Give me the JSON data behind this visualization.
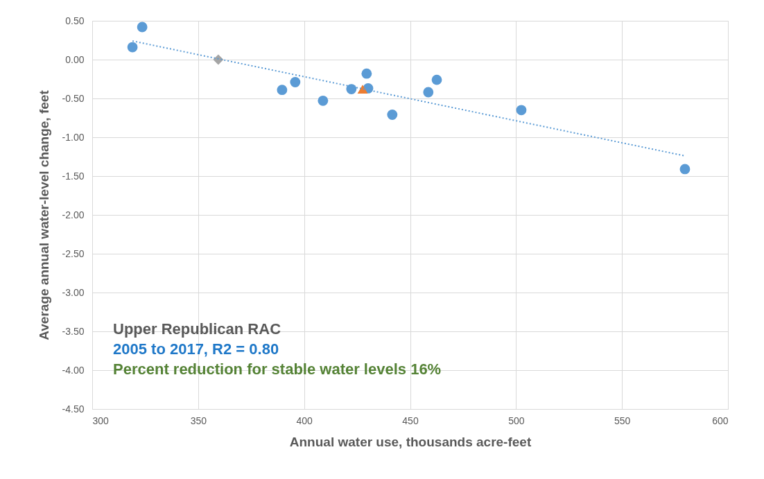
{
  "chart_data": {
    "type": "scatter",
    "xlabel": "Annual  water use, thousands acre-feet",
    "ylabel": "Average annual water-level change, feet",
    "xlim": [
      300,
      600
    ],
    "xticks": [
      300,
      350,
      400,
      450,
      500,
      550,
      600
    ],
    "ylim": [
      -4.5,
      0.5
    ],
    "yticks": [
      {
        "value": 0.5,
        "label": "0.50"
      },
      {
        "value": 0,
        "label": "0.00"
      },
      {
        "value": -0.5,
        "label": "-0.50"
      },
      {
        "value": -1,
        "label": "-1.00"
      },
      {
        "value": -1.5,
        "label": "-1.50"
      },
      {
        "value": -2,
        "label": "-2.00"
      },
      {
        "value": -2.5,
        "label": "-2.50"
      },
      {
        "value": -3,
        "label": "-3.00"
      },
      {
        "value": -3.5,
        "label": "-3.50"
      },
      {
        "value": -4,
        "label": "-4.00"
      },
      {
        "value": -4.5,
        "label": "-4.50"
      }
    ],
    "grid": true,
    "series": [
      {
        "marker": "circle",
        "color": "#5b9bd5",
        "x": [
          319.0,
          323.6,
          389.6,
          395.8,
          408.9,
          422.3,
          429.5,
          430.2,
          441.6,
          458.6,
          462.6,
          502.5,
          579.7
        ],
        "values": [
          0.16,
          0.42,
          -0.39,
          -0.29,
          -0.53,
          -0.38,
          -0.18,
          -0.37,
          -0.71,
          -0.42,
          -0.26,
          -0.65,
          -1.41
        ]
      },
      {
        "marker": "triangle",
        "color": "#ed7d31",
        "x": [
          427.6
        ],
        "values": [
          -0.38
        ]
      },
      {
        "marker": "diamond",
        "color": "#a5a5a5",
        "x": [
          359.5
        ],
        "values": [
          0
        ]
      },
      {
        "type": "line",
        "line_style": "dotted",
        "color": "#5b9bd5",
        "x": [
          319.0,
          579.7
        ],
        "values": [
          0.24,
          -1.24
        ]
      }
    ],
    "annotations": [
      "Upper Republican RAC",
      "2005 to 2017, R2 = 0.80",
      "Percent reduction for stable water levels 16%"
    ]
  }
}
